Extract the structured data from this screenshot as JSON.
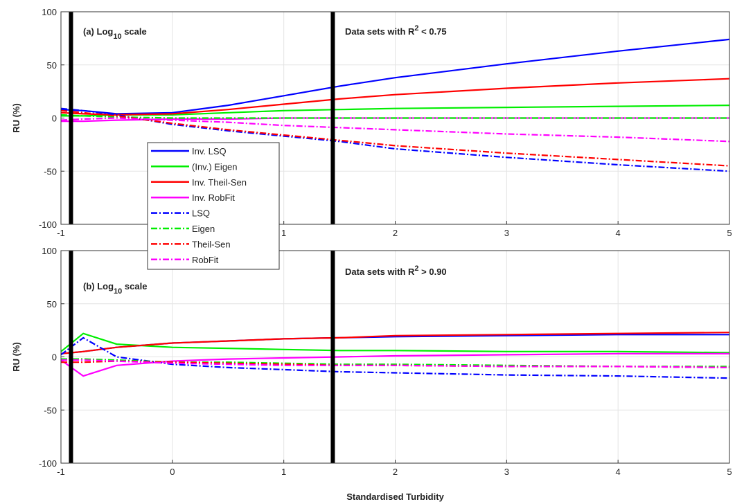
{
  "chart_data": [
    {
      "type": "line",
      "annotation": {
        "pre": "(a) Log",
        "sub": "10",
        "post": " scale"
      },
      "note": {
        "pre": "Data sets with R",
        "sup": "2",
        "post": " < 0.75"
      },
      "ylabel": "RU (%)",
      "x": [
        -1,
        -0.8,
        -0.5,
        0,
        0.5,
        1,
        1.5,
        2,
        3,
        4,
        5
      ],
      "xlim": [
        -1,
        5
      ],
      "xticks": [
        -1,
        0,
        1,
        2,
        3,
        4,
        5
      ],
      "ylim": [
        -100,
        100
      ],
      "yticks": [
        -100,
        -50,
        0,
        50,
        100
      ],
      "grid": true,
      "legend": true,
      "vlines": [
        -0.91,
        1.44
      ],
      "series": [
        {
          "name": "Inv. LSQ",
          "color": "#0000ff",
          "dash": false,
          "values": [
            8,
            7,
            4,
            5,
            12,
            21,
            30,
            38,
            51,
            63,
            74
          ]
        },
        {
          "name": "(Inv.) Eigen",
          "color": "#00ee00",
          "dash": false,
          "values": [
            2,
            2,
            3,
            3,
            5,
            7,
            8,
            9,
            10,
            11,
            12
          ]
        },
        {
          "name": "Inv. Theil-Sen",
          "color": "#ff0000",
          "dash": false,
          "values": [
            5,
            4,
            3,
            4,
            8,
            13,
            18,
            22,
            28,
            33,
            37
          ]
        },
        {
          "name": "Inv. RobFit",
          "color": "#ff00ff",
          "dash": false,
          "values": [
            -3,
            -3,
            -2,
            -1,
            -1,
            0,
            0,
            0,
            0,
            0,
            0
          ]
        },
        {
          "name": "LSQ",
          "color": "#0000ff",
          "dash": true,
          "values": [
            9,
            7,
            3,
            -6,
            -12,
            -17,
            -22,
            -29,
            -37,
            -44,
            -50
          ]
        },
        {
          "name": "Eigen",
          "color": "#00ee00",
          "dash": true,
          "values": [
            3,
            2,
            1,
            0,
            0,
            0,
            0,
            0,
            0,
            0,
            0
          ]
        },
        {
          "name": "Theil-Sen",
          "color": "#ff0000",
          "dash": true,
          "values": [
            7,
            5,
            2,
            -5,
            -11,
            -16,
            -21,
            -26,
            -33,
            -39,
            -45
          ]
        },
        {
          "name": "RobFit",
          "color": "#ff00ff",
          "dash": true,
          "values": [
            -2,
            -1,
            0,
            -2,
            -4,
            -7,
            -9,
            -11,
            -15,
            -18,
            -22
          ]
        }
      ]
    },
    {
      "type": "line",
      "annotation": {
        "pre": "(b)  Log",
        "sub": "10",
        "post": " scale"
      },
      "note": {
        "pre": "Data sets with R",
        "sup": "2",
        "post": " > 0.90"
      },
      "ylabel": "RU (%)",
      "xlabel": "Standardised Turbidity",
      "x": [
        -1,
        -0.8,
        -0.5,
        0,
        0.5,
        1,
        1.5,
        2,
        3,
        4,
        5
      ],
      "xlim": [
        -1,
        5
      ],
      "xticks": [
        -1,
        0,
        1,
        2,
        3,
        4,
        5
      ],
      "ylim": [
        -100,
        100
      ],
      "yticks": [
        -100,
        -50,
        0,
        50,
        100
      ],
      "grid": true,
      "legend": false,
      "vlines": [
        -0.91,
        1.44
      ],
      "series": [
        {
          "color": "#0000ff",
          "dash": false,
          "values": [
            3,
            5,
            9,
            13,
            15,
            17,
            18,
            19,
            20,
            21,
            21
          ]
        },
        {
          "color": "#00ee00",
          "dash": false,
          "values": [
            5,
            22,
            12,
            9,
            8,
            7,
            6,
            6,
            5,
            5,
            4
          ]
        },
        {
          "color": "#ff0000",
          "dash": false,
          "values": [
            3,
            5,
            9,
            13,
            15,
            17,
            18,
            20,
            21,
            22,
            23
          ]
        },
        {
          "color": "#ff00ff",
          "dash": false,
          "values": [
            -3,
            -18,
            -8,
            -4,
            -2,
            -1,
            0,
            1,
            2,
            3,
            3
          ]
        },
        {
          "color": "#0000ff",
          "dash": true,
          "values": [
            2,
            18,
            0,
            -7,
            -10,
            -12,
            -14,
            -15,
            -17,
            -18,
            -20
          ]
        },
        {
          "color": "#00ee00",
          "dash": true,
          "values": [
            -2,
            -2,
            -3,
            -5,
            -5,
            -6,
            -7,
            -7,
            -8,
            -9,
            -9
          ]
        },
        {
          "color": "#ff0000",
          "dash": true,
          "values": [
            -5,
            -5,
            -4,
            -5,
            -6,
            -7,
            -8,
            -8,
            -9,
            -9,
            -10
          ]
        },
        {
          "color": "#ff00ff",
          "dash": true,
          "values": [
            -3,
            -3,
            -4,
            -6,
            -7,
            -8,
            -8,
            -8,
            -9,
            -9,
            -10
          ]
        }
      ]
    }
  ]
}
